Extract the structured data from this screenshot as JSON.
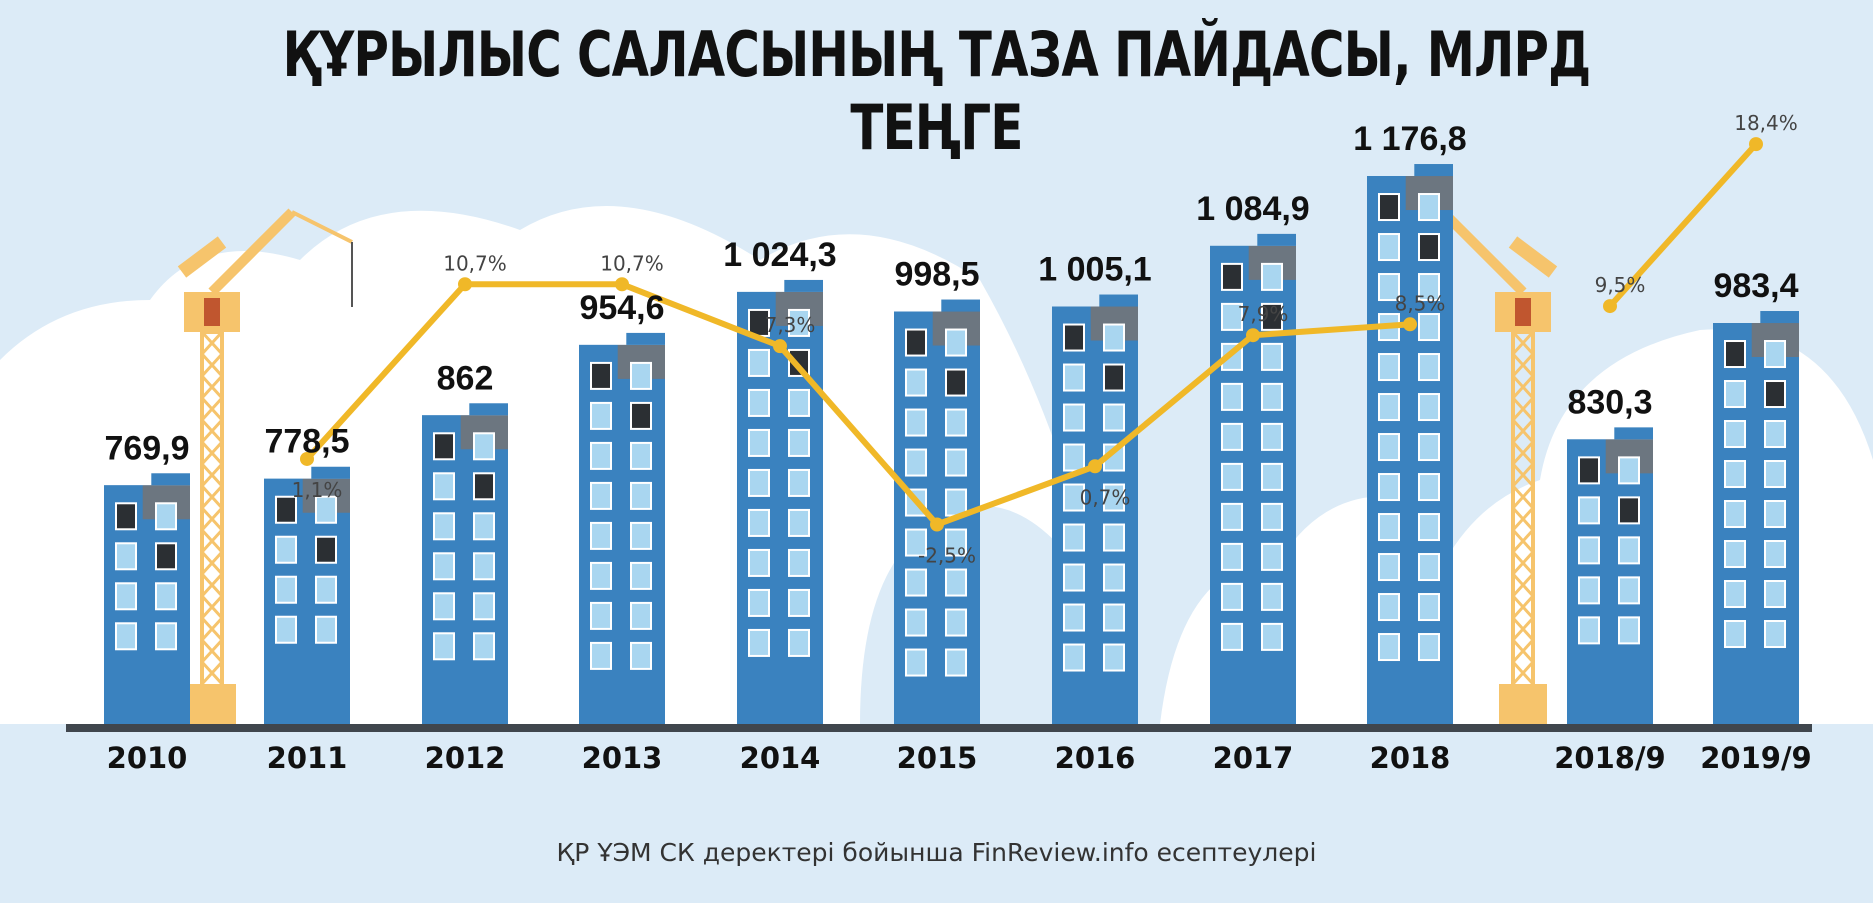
{
  "title": "ҚҰРЫЛЫС САЛАСЫНЫҢ ТАЗА ПАЙДАСЫ, МЛРД ТЕҢГЕ",
  "source": "ҚР ҰЭМ СК деректері бойынша FinReview.info есептеулері",
  "colors": {
    "background": "#dcebf7",
    "building": "#3a82bf",
    "roof": "#6c7680",
    "window_light": "#a9d6f0",
    "window_dark": "#2b2f33",
    "line": "#f0b828",
    "crane": "#f6c46c",
    "ground": "#40464d"
  },
  "chart_data": {
    "type": "bar",
    "title": "ҚҰРЫЛЫС САЛАСЫНЫҢ ТАЗА ПАЙДАСЫ, МЛРД ТЕҢГЕ",
    "categories": [
      "2010",
      "2011",
      "2012",
      "2013",
      "2014",
      "2015",
      "2016",
      "2017",
      "2018",
      "2018/9",
      "2019/9"
    ],
    "series": [
      {
        "type": "bar",
        "values": [
          769.9,
          778.5,
          862,
          954.6,
          1024.3,
          998.5,
          1005.1,
          1084.9,
          1176.8,
          830.3,
          983.4
        ],
        "labels": [
          "769,9",
          "778,5",
          "862",
          "954,6",
          "1 024,3",
          "998,5",
          "1 005,1",
          "1 084,9",
          "1 176,8",
          "830,3",
          "983,4"
        ]
      },
      {
        "type": "line",
        "values": [
          null,
          1.1,
          10.7,
          10.7,
          7.3,
          -2.5,
          0.7,
          7.9,
          8.5,
          9.5,
          18.4
        ],
        "labels": [
          "",
          "1,1%",
          "10,7%",
          "10,7%",
          "7,3%",
          "-2,5%",
          "0,7%",
          "7,9%",
          "8,5%",
          "9,5%",
          "18,4%"
        ]
      }
    ],
    "axis_labels_visible": false,
    "grid": false,
    "legend": "none"
  }
}
